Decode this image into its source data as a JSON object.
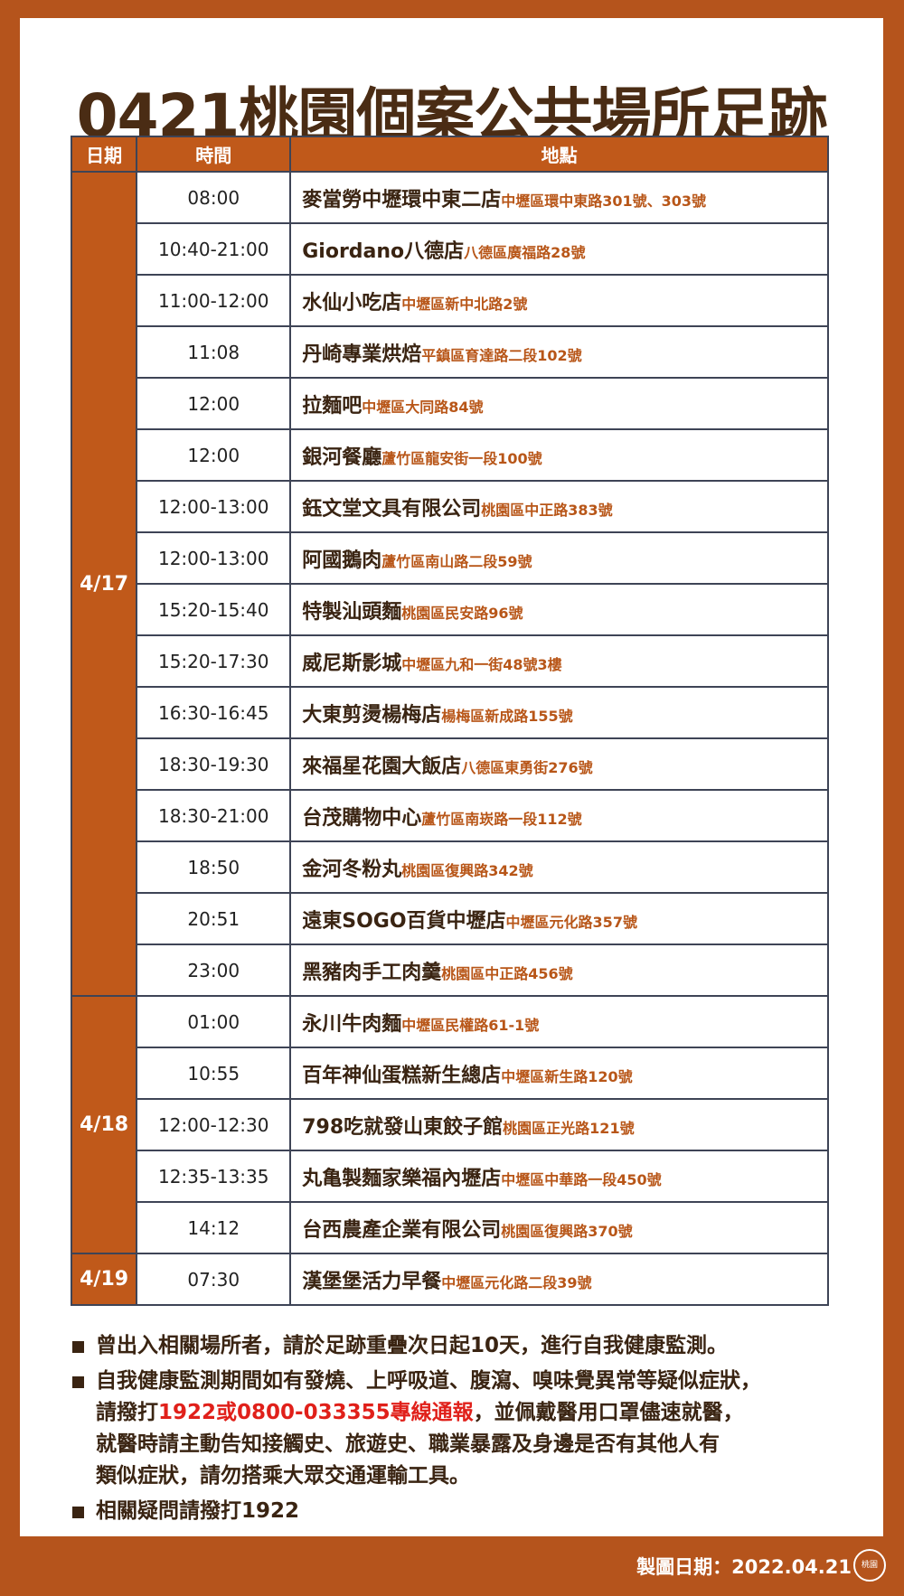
{
  "title": "0421桃園個案公共場所足跡",
  "table": {
    "headers": [
      "日期",
      "時間",
      "地點"
    ],
    "groups": [
      {
        "date": "4/17",
        "rows": [
          {
            "time": "08:00",
            "place": "麥當勞中壢環中東二店",
            "address": "中壢區環中東路301號、303號"
          },
          {
            "time": "10:40-21:00",
            "place": "Giordano八德店",
            "address": "八德區廣福路28號"
          },
          {
            "time": "11:00-12:00",
            "place": "水仙小吃店",
            "address": "中壢區新中北路2號"
          },
          {
            "time": "11:08",
            "place": "丹崎專業烘焙",
            "address": "平鎮區育達路二段102號"
          },
          {
            "time": "12:00",
            "place": "拉麵吧",
            "address": "中壢區大同路84號"
          },
          {
            "time": "12:00",
            "place": "銀河餐廳",
            "address": "蘆竹區龍安街一段100號"
          },
          {
            "time": "12:00-13:00",
            "place": "鈺文堂文具有限公司",
            "address": "桃園區中正路383號"
          },
          {
            "time": "12:00-13:00",
            "place": "阿國鵝肉",
            "address": "蘆竹區南山路二段59號"
          },
          {
            "time": "15:20-15:40",
            "place": "特製汕頭麵",
            "address": "桃園區民安路96號"
          },
          {
            "time": "15:20-17:30",
            "place": "威尼斯影城",
            "address": "中壢區九和一街48號3樓"
          },
          {
            "time": "16:30-16:45",
            "place": "大東剪燙楊梅店",
            "address": "楊梅區新成路155號"
          },
          {
            "time": "18:30-19:30",
            "place": "來福星花園大飯店",
            "address": "八德區東勇街276號"
          },
          {
            "time": "18:30-21:00",
            "place": "台茂購物中心",
            "address": "蘆竹區南崁路一段112號"
          },
          {
            "time": "18:50",
            "place": "金河冬粉丸",
            "address": "桃園區復興路342號"
          },
          {
            "time": "20:51",
            "place": "遠東SOGO百貨中壢店",
            "address": "中壢區元化路357號"
          },
          {
            "time": "23:00",
            "place": "黑豬肉手工肉羹",
            "address": "桃園區中正路456號"
          }
        ]
      },
      {
        "date": "4/18",
        "rows": [
          {
            "time": "01:00",
            "place": "永川牛肉麵",
            "address": "中壢區民權路61-1號"
          },
          {
            "time": "10:55",
            "place": "百年神仙蛋糕新生總店",
            "address": "中壢區新生路120號"
          },
          {
            "time": "12:00-12:30",
            "place": "798吃就發山東餃子館",
            "address": "桃園區正光路121號"
          },
          {
            "time": "12:35-13:35",
            "place": "丸亀製麵家樂福內壢店",
            "address": "中壢區中華路一段450號"
          },
          {
            "time": "14:12",
            "place": "台西農產企業有限公司",
            "address": "桃園區復興路370號"
          }
        ]
      },
      {
        "date": "4/19",
        "rows": [
          {
            "time": "07:30",
            "place": "漢堡堡活力早餐",
            "address": "中壢區元化路二段39號"
          }
        ]
      }
    ]
  },
  "notes": [
    {
      "parts": [
        "曾出入相關場所者，請於足跡重疊次日起10天，進行自我健康監測。"
      ]
    },
    {
      "parts": [
        "自我健康監測期間如有發燒、上呼吸道、腹瀉、嗅味覺異常等疑似症狀，",
        "請撥打",
        "1922或0800-033355專線通報",
        "，並佩戴醫用口罩儘速就醫，",
        "就醫時請主動告知接觸史、旅遊史、職業暴露及身邊是否有其他人有",
        "類似症狀，請勿搭乘大眾交通運輸工具。"
      ]
    },
    {
      "parts": [
        "相關疑問請撥打1922"
      ]
    }
  ],
  "footer": "製圖日期：2022.04.21",
  "seal": "桃園"
}
